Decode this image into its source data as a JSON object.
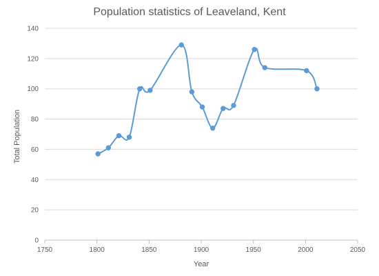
{
  "chart_data": {
    "type": "scatter",
    "title": "Population statistics of Leaveland, Kent",
    "xlabel": "Year",
    "ylabel": "Total Population",
    "xlim": [
      1750,
      2050
    ],
    "ylim": [
      0,
      140
    ],
    "xticks": [
      1750,
      1800,
      1850,
      1900,
      1950,
      2000,
      2050
    ],
    "yticks": [
      0,
      20,
      40,
      60,
      80,
      100,
      120,
      140
    ],
    "grid": "horizontal",
    "smooth": true,
    "series": [
      {
        "color": "#5b9bd5",
        "x": [
          1801,
          1811,
          1821,
          1831,
          1841,
          1851,
          1881,
          1891,
          1901,
          1911,
          1921,
          1931,
          1951,
          1961,
          2001,
          2011
        ],
        "y": [
          57,
          61,
          69,
          68,
          100,
          99,
          129,
          98,
          88,
          74,
          87,
          89,
          126,
          114,
          112,
          100
        ]
      }
    ]
  }
}
